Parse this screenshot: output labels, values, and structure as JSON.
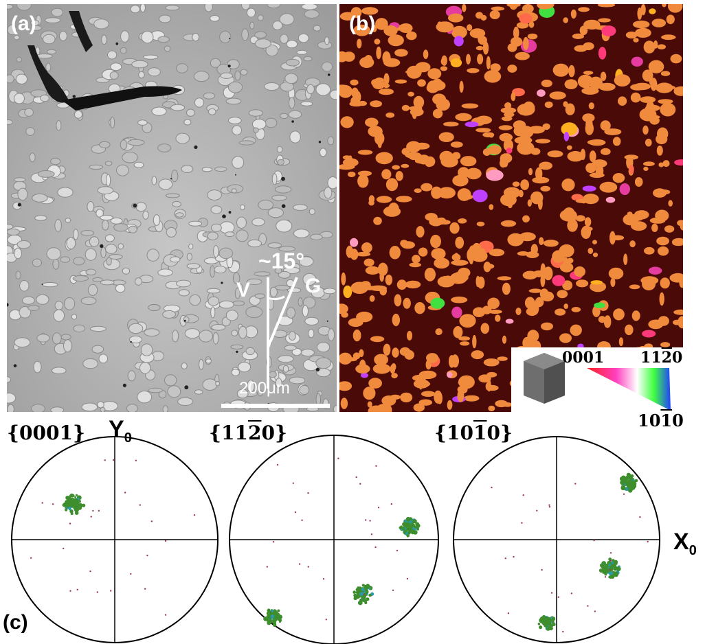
{
  "panel_a": {
    "label": "(a)",
    "angle_label": "~15°",
    "v_label": "V",
    "g_label": "G",
    "scale_label": "200μm"
  },
  "panel_b": {
    "label": "(b)",
    "key": {
      "label_0001": "0001",
      "label_1120_digits": [
        "1",
        "1",
        "2",
        "0"
      ],
      "label_1010_digits": [
        "1",
        "0",
        "1",
        "0"
      ],
      "overlined_digit_index": 2
    },
    "colors": {
      "matrix": "#4a0a08",
      "dominant_grain": "#f08a3c"
    }
  },
  "panel_c": {
    "label": "(c)",
    "y_axis": "Y",
    "x_axis": "X",
    "axis_subscript": "0",
    "pole_figures": [
      {
        "title_digits": [
          "0",
          "0",
          "0",
          "1"
        ],
        "overline_index": -1
      },
      {
        "title_digits": [
          "1",
          "1",
          "2",
          "0"
        ],
        "overline_index": 2
      },
      {
        "title_digits": [
          "1",
          "0",
          "1",
          "0"
        ],
        "overline_index": 2
      }
    ],
    "colors": {
      "poles": "#3e8e2e",
      "minor": "#2a9aa8",
      "trace": "#9a3a6a"
    }
  }
}
